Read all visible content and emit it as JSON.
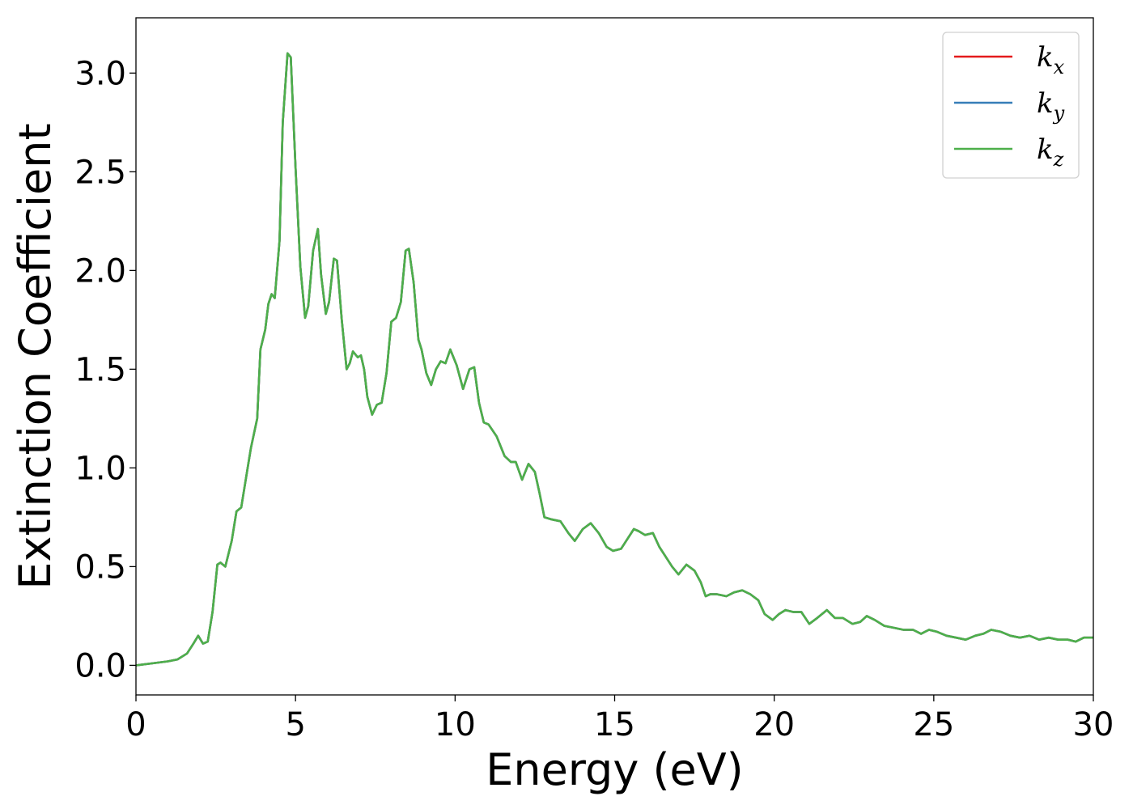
{
  "chart_data": {
    "type": "line",
    "title": "",
    "xlabel": "Energy (eV)",
    "ylabel": "Extinction Coefficient",
    "xlim": [
      0,
      30
    ],
    "ylim": [
      -0.15,
      3.28
    ],
    "xticks": [
      "0",
      "5",
      "10",
      "15",
      "20",
      "25",
      "30"
    ],
    "yticks": [
      "0.0",
      "0.5",
      "1.0",
      "1.5",
      "2.0",
      "2.5",
      "3.0"
    ],
    "grid": false,
    "legend_position": "top-right",
    "series": [
      {
        "name": "k",
        "subscript": "x",
        "color": "#e41a1c",
        "data_ref": "shared_curve"
      },
      {
        "name": "k",
        "subscript": "y",
        "color": "#377eb8",
        "data_ref": "shared_curve"
      },
      {
        "name": "k",
        "subscript": "z",
        "color": "#4daf4a",
        "data_ref": "shared_curve"
      }
    ],
    "shared_curve": {
      "x": [
        0,
        0.5,
        1.0,
        1.3,
        1.6,
        1.8,
        1.95,
        2.1,
        2.25,
        2.4,
        2.55,
        2.65,
        2.8,
        3.0,
        3.15,
        3.3,
        3.5,
        3.6,
        3.8,
        3.9,
        4.05,
        4.15,
        4.25,
        4.35,
        4.5,
        4.6,
        4.75,
        4.85,
        5.0,
        5.15,
        5.3,
        5.4,
        5.55,
        5.7,
        5.8,
        5.95,
        6.05,
        6.2,
        6.3,
        6.45,
        6.6,
        6.7,
        6.8,
        6.95,
        7.05,
        7.15,
        7.25,
        7.4,
        7.55,
        7.7,
        7.85,
        8.0,
        8.15,
        8.3,
        8.45,
        8.55,
        8.7,
        8.85,
        8.95,
        9.1,
        9.25,
        9.4,
        9.55,
        9.7,
        9.85,
        10.05,
        10.25,
        10.45,
        10.6,
        10.75,
        10.9,
        11.05,
        11.3,
        11.55,
        11.75,
        11.9,
        12.1,
        12.3,
        12.5,
        12.65,
        12.8,
        13.0,
        13.3,
        13.55,
        13.75,
        14.0,
        14.25,
        14.5,
        14.75,
        14.95,
        15.2,
        15.4,
        15.6,
        15.75,
        15.95,
        16.2,
        16.4,
        16.6,
        16.8,
        17.0,
        17.25,
        17.5,
        17.7,
        17.85,
        18.0,
        18.2,
        18.5,
        18.75,
        19.0,
        19.25,
        19.5,
        19.7,
        19.95,
        20.15,
        20.35,
        20.6,
        20.85,
        21.1,
        21.35,
        21.65,
        21.9,
        22.15,
        22.45,
        22.7,
        22.9,
        23.15,
        23.45,
        23.75,
        24.05,
        24.35,
        24.6,
        24.85,
        25.1,
        25.4,
        25.7,
        26.0,
        26.3,
        26.55,
        26.8,
        27.1,
        27.4,
        27.7,
        28.0,
        28.3,
        28.6,
        28.9,
        29.2,
        29.45,
        29.7,
        30.0
      ],
      "y": [
        0.0,
        0.01,
        0.02,
        0.03,
        0.06,
        0.11,
        0.15,
        0.11,
        0.12,
        0.27,
        0.51,
        0.52,
        0.5,
        0.63,
        0.78,
        0.8,
        1.0,
        1.1,
        1.25,
        1.6,
        1.7,
        1.83,
        1.88,
        1.86,
        2.15,
        2.75,
        3.1,
        3.08,
        2.52,
        2.02,
        1.76,
        1.82,
        2.1,
        2.21,
        1.98,
        1.78,
        1.84,
        2.06,
        2.05,
        1.75,
        1.5,
        1.53,
        1.59,
        1.56,
        1.57,
        1.5,
        1.36,
        1.27,
        1.32,
        1.33,
        1.48,
        1.74,
        1.76,
        1.84,
        2.1,
        2.11,
        1.94,
        1.65,
        1.6,
        1.48,
        1.42,
        1.5,
        1.54,
        1.53,
        1.6,
        1.52,
        1.4,
        1.5,
        1.51,
        1.33,
        1.23,
        1.22,
        1.16,
        1.06,
        1.03,
        1.03,
        0.94,
        1.02,
        0.98,
        0.87,
        0.75,
        0.74,
        0.73,
        0.67,
        0.63,
        0.69,
        0.72,
        0.67,
        0.6,
        0.58,
        0.59,
        0.64,
        0.69,
        0.68,
        0.66,
        0.67,
        0.6,
        0.55,
        0.5,
        0.46,
        0.51,
        0.48,
        0.42,
        0.35,
        0.36,
        0.36,
        0.35,
        0.37,
        0.38,
        0.36,
        0.33,
        0.26,
        0.23,
        0.26,
        0.28,
        0.27,
        0.27,
        0.21,
        0.24,
        0.28,
        0.24,
        0.24,
        0.21,
        0.22,
        0.25,
        0.23,
        0.2,
        0.19,
        0.18,
        0.18,
        0.16,
        0.18,
        0.17,
        0.15,
        0.14,
        0.13,
        0.15,
        0.16,
        0.18,
        0.17,
        0.15,
        0.14,
        0.15,
        0.13,
        0.14,
        0.13,
        0.13,
        0.12,
        0.14,
        0.14
      ]
    }
  }
}
